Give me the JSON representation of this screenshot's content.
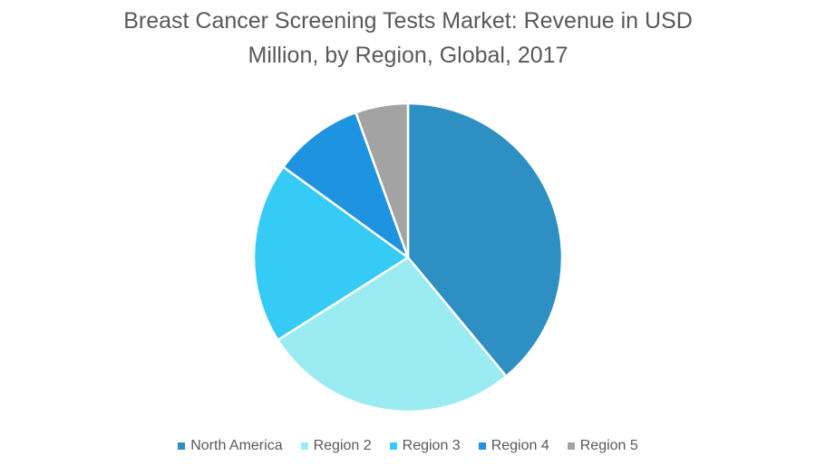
{
  "chart_data": {
    "type": "pie",
    "title_lines": [
      "Breast Cancer Screening Tests Market: Revenue in USD",
      "Million, by Region, Global, 2017"
    ],
    "categories": [
      "North America",
      "Region 2",
      "Region 3",
      "Region 4",
      "Region 5"
    ],
    "values": [
      39,
      27,
      19,
      9.5,
      5.5
    ],
    "colors": [
      "#2e8fc2",
      "#9aebf2",
      "#35cbf5",
      "#1e94e0",
      "#a3a3a3"
    ],
    "legend_position": "bottom"
  }
}
